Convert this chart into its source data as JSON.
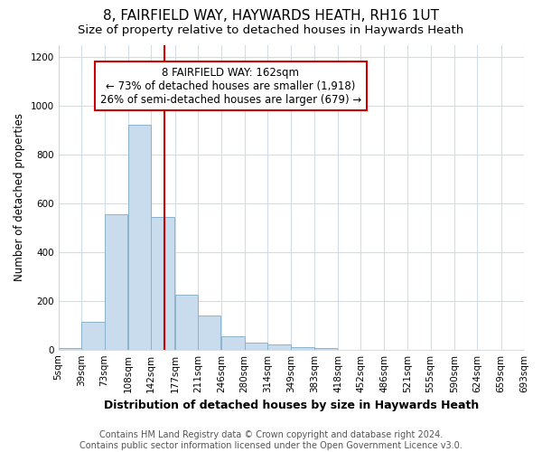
{
  "title1": "8, FAIRFIELD WAY, HAYWARDS HEATH, RH16 1UT",
  "title2": "Size of property relative to detached houses in Haywards Heath",
  "xlabel": "Distribution of detached houses by size in Haywards Heath",
  "ylabel": "Number of detached properties",
  "bin_edges": [
    5,
    39,
    73,
    108,
    142,
    177,
    211,
    246,
    280,
    314,
    349,
    383,
    418,
    452,
    486,
    521,
    555,
    590,
    624,
    659,
    693
  ],
  "bar_heights": [
    5,
    115,
    555,
    925,
    545,
    225,
    140,
    55,
    30,
    20,
    10,
    5,
    0,
    0,
    0,
    0,
    0,
    0,
    0,
    0
  ],
  "bar_color": "#c9dced",
  "bar_edge_color": "#8ab4cc",
  "vline_x": 162,
  "vline_color": "#cc0000",
  "annotation_text": "8 FAIRFIELD WAY: 162sqm\n← 73% of detached houses are smaller (1,918)\n26% of semi-detached houses are larger (679) →",
  "annotation_box_color": "#cc0000",
  "annotation_fill": "white",
  "ylim": [
    0,
    1250
  ],
  "yticks": [
    0,
    200,
    400,
    600,
    800,
    1000,
    1200
  ],
  "background_color": "#ffffff",
  "grid_color": "#d0dce8",
  "footer_text": "Contains HM Land Registry data © Crown copyright and database right 2024.\nContains public sector information licensed under the Open Government Licence v3.0.",
  "title1_fontsize": 11,
  "title2_fontsize": 9.5,
  "xlabel_fontsize": 9,
  "ylabel_fontsize": 8.5,
  "tick_fontsize": 7.5,
  "footer_fontsize": 7,
  "annot_fontsize": 8.5
}
